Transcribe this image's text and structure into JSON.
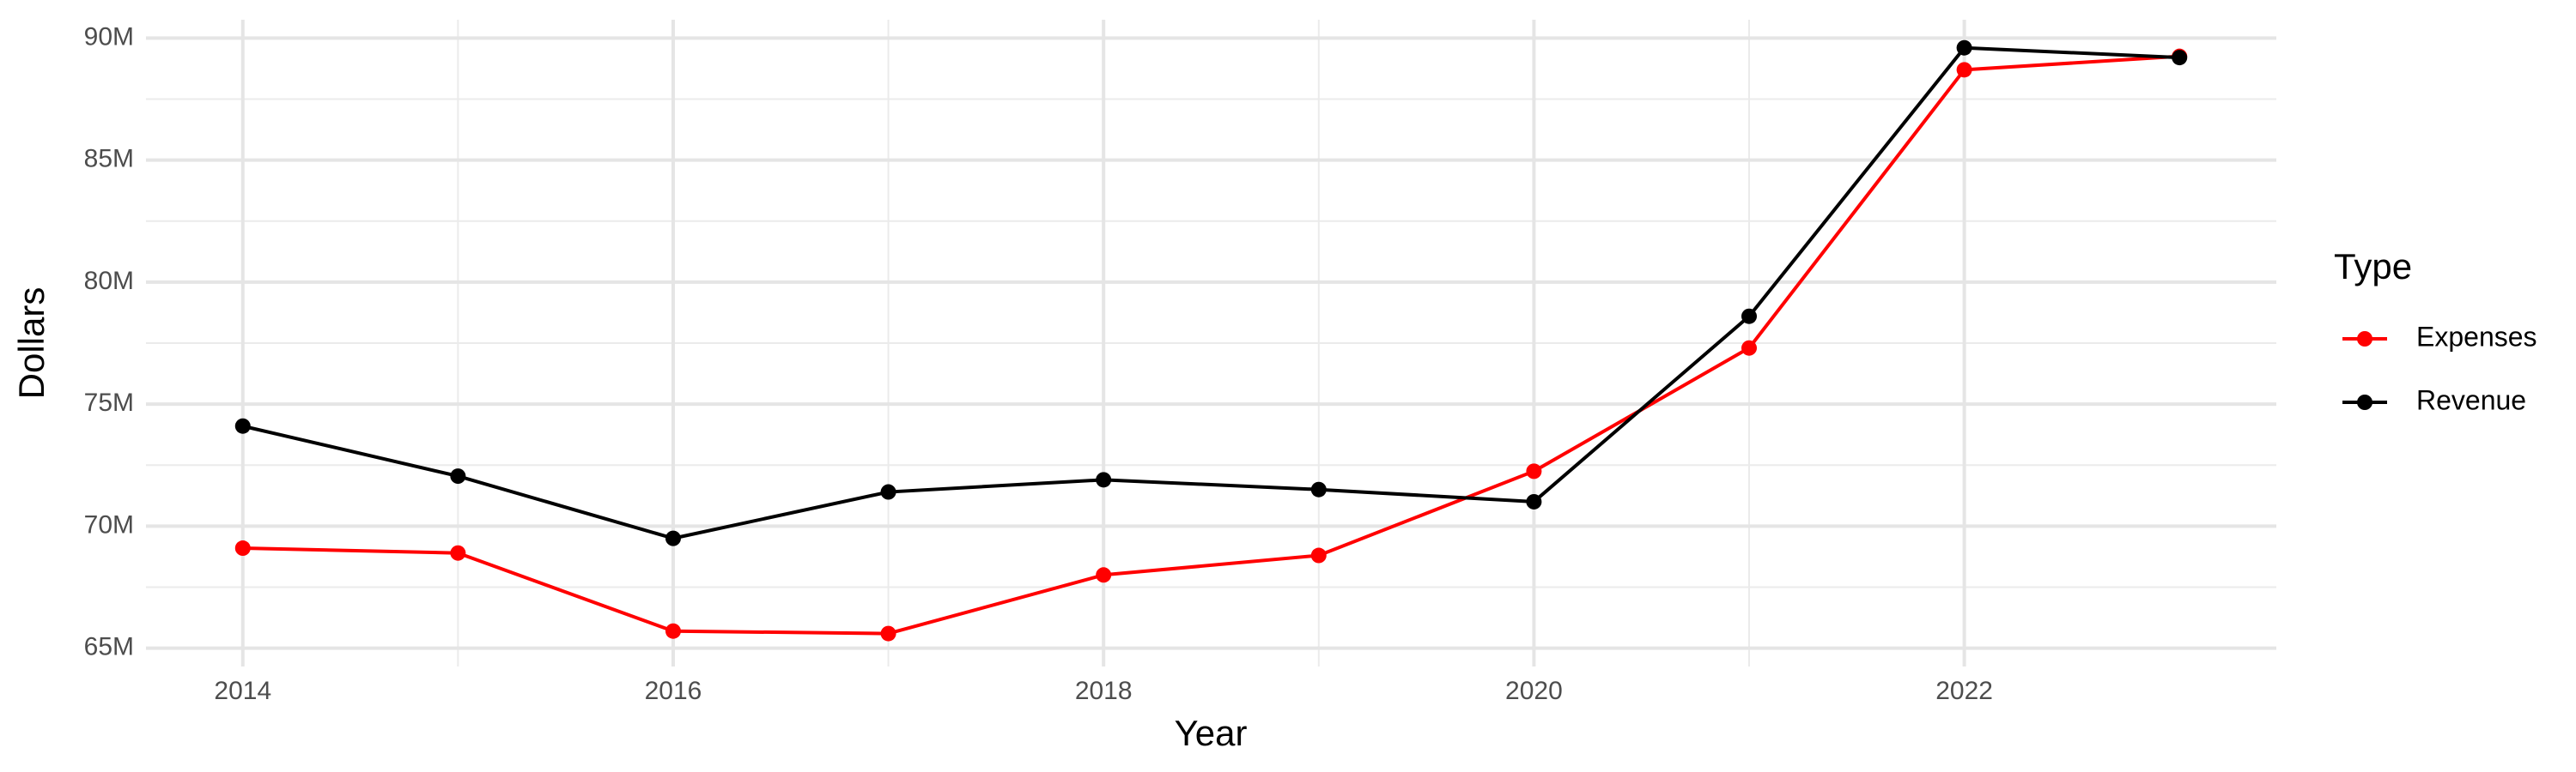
{
  "chart_data": {
    "type": "line",
    "x_label": "Year",
    "y_label": "Dollars",
    "legend_title": "Type",
    "legend": "right",
    "grid": true,
    "x": [
      2014,
      2015,
      2016,
      2017,
      2018,
      2019,
      2020,
      2021,
      2022,
      2023
    ],
    "series": [
      {
        "name": "Expenses",
        "color": "#ff0000",
        "values": [
          69100000,
          68900000,
          65700000,
          65600000,
          68000000,
          68800000,
          72250000,
          77300000,
          88700000,
          89250000
        ]
      },
      {
        "name": "Revenue",
        "color": "#000000",
        "values": [
          74100000,
          72050000,
          69500000,
          71400000,
          71900000,
          71500000,
          71000000,
          78600000,
          89600000,
          89200000
        ]
      }
    ],
    "xlim": [
      2013.55,
      2023.45
    ],
    "xticks": [
      2014,
      2016,
      2018,
      2020,
      2022
    ],
    "ylim": [
      64250000,
      90750000
    ],
    "yticks": [
      {
        "value": 65000000,
        "label": "65M"
      },
      {
        "value": 70000000,
        "label": "70M"
      },
      {
        "value": 75000000,
        "label": "75M"
      },
      {
        "value": 80000000,
        "label": "80M"
      },
      {
        "value": 85000000,
        "label": "85M"
      },
      {
        "value": 90000000,
        "label": "90M"
      }
    ]
  }
}
